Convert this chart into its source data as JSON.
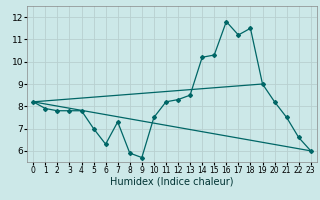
{
  "xlabel": "Humidex (Indice chaleur)",
  "bg_color": "#cce8e8",
  "line_color": "#006666",
  "grid_color": "#b8d0d0",
  "xlim": [
    -0.5,
    23.5
  ],
  "ylim": [
    5.5,
    12.5
  ],
  "xticks": [
    0,
    1,
    2,
    3,
    4,
    5,
    6,
    7,
    8,
    9,
    10,
    11,
    12,
    13,
    14,
    15,
    16,
    17,
    18,
    19,
    20,
    21,
    22,
    23
  ],
  "yticks": [
    6,
    7,
    8,
    9,
    10,
    11,
    12
  ],
  "line1": {
    "x": [
      0,
      1,
      2,
      3,
      4,
      5,
      6,
      7,
      8,
      9,
      10,
      11,
      12,
      13,
      14,
      15,
      16,
      17,
      18,
      19,
      20,
      21,
      22,
      23
    ],
    "y": [
      8.2,
      7.9,
      7.8,
      7.8,
      7.8,
      7.0,
      6.3,
      7.3,
      5.9,
      5.7,
      7.5,
      8.2,
      8.3,
      8.5,
      10.2,
      10.3,
      11.8,
      11.2,
      11.5,
      9.0,
      8.2,
      7.5,
      6.6,
      6.0
    ]
  },
  "line2": {
    "x": [
      0,
      23
    ],
    "y": [
      8.2,
      6.0
    ]
  },
  "line3": {
    "x": [
      0,
      19
    ],
    "y": [
      8.2,
      9.0
    ]
  },
  "xlabel_fontsize": 7,
  "tick_fontsize": 5.5,
  "ytick_fontsize": 6.5
}
